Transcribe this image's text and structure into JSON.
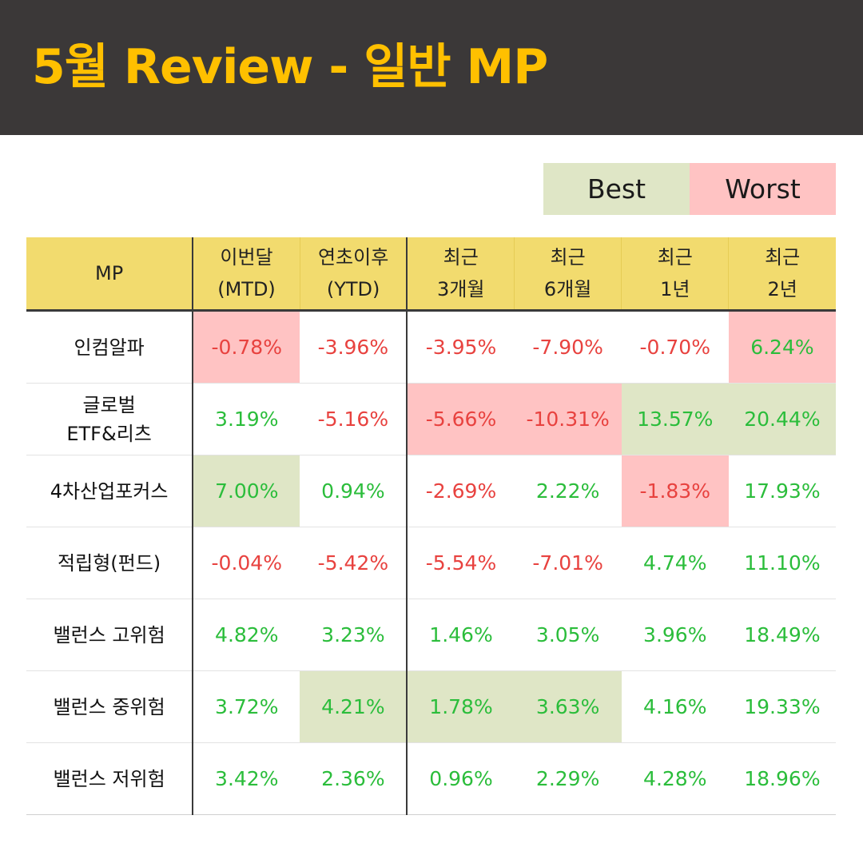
{
  "title": "5월 Review - 일반 MP",
  "legend": {
    "best": "Best",
    "worst": "Worst"
  },
  "table": {
    "headers": [
      {
        "l1": "MP",
        "l2": ""
      },
      {
        "l1": "이번달",
        "l2": "(MTD)"
      },
      {
        "l1": "연초이후",
        "l2": "(YTD)"
      },
      {
        "l1": "최근",
        "l2": "3개월"
      },
      {
        "l1": "최근",
        "l2": "6개월"
      },
      {
        "l1": "최근",
        "l2": "1년"
      },
      {
        "l1": "최근",
        "l2": "2년"
      }
    ],
    "rows": [
      {
        "name1": "인컴알파",
        "name2": "",
        "cells": [
          {
            "v": "-0.78%",
            "s": "neg",
            "h": "worst"
          },
          {
            "v": "-3.96%",
            "s": "neg",
            "h": ""
          },
          {
            "v": "-3.95%",
            "s": "neg",
            "h": ""
          },
          {
            "v": "-7.90%",
            "s": "neg",
            "h": ""
          },
          {
            "v": "-0.70%",
            "s": "neg",
            "h": ""
          },
          {
            "v": "6.24%",
            "s": "pos",
            "h": "worst"
          }
        ]
      },
      {
        "name1": "글로벌",
        "name2": "ETF&리츠",
        "cells": [
          {
            "v": "3.19%",
            "s": "pos",
            "h": ""
          },
          {
            "v": "-5.16%",
            "s": "neg",
            "h": ""
          },
          {
            "v": "-5.66%",
            "s": "neg",
            "h": "worst"
          },
          {
            "v": "-10.31%",
            "s": "neg",
            "h": "worst"
          },
          {
            "v": "13.57%",
            "s": "pos",
            "h": "best"
          },
          {
            "v": "20.44%",
            "s": "pos",
            "h": "best"
          }
        ]
      },
      {
        "name1": "4차산업포커스",
        "name2": "",
        "cells": [
          {
            "v": "7.00%",
            "s": "pos",
            "h": "best"
          },
          {
            "v": "0.94%",
            "s": "pos",
            "h": ""
          },
          {
            "v": "-2.69%",
            "s": "neg",
            "h": ""
          },
          {
            "v": "2.22%",
            "s": "pos",
            "h": ""
          },
          {
            "v": "-1.83%",
            "s": "neg",
            "h": "worst"
          },
          {
            "v": "17.93%",
            "s": "pos",
            "h": ""
          }
        ]
      },
      {
        "name1": "적립형(펀드)",
        "name2": "",
        "cells": [
          {
            "v": "-0.04%",
            "s": "neg",
            "h": ""
          },
          {
            "v": "-5.42%",
            "s": "neg",
            "h": ""
          },
          {
            "v": "-5.54%",
            "s": "neg",
            "h": ""
          },
          {
            "v": "-7.01%",
            "s": "neg",
            "h": ""
          },
          {
            "v": "4.74%",
            "s": "pos",
            "h": ""
          },
          {
            "v": "11.10%",
            "s": "pos",
            "h": ""
          }
        ]
      },
      {
        "name1": "밸런스 고위험",
        "name2": "",
        "cells": [
          {
            "v": "4.82%",
            "s": "pos",
            "h": ""
          },
          {
            "v": "3.23%",
            "s": "pos",
            "h": ""
          },
          {
            "v": "1.46%",
            "s": "pos",
            "h": ""
          },
          {
            "v": "3.05%",
            "s": "pos",
            "h": ""
          },
          {
            "v": "3.96%",
            "s": "pos",
            "h": ""
          },
          {
            "v": "18.49%",
            "s": "pos",
            "h": ""
          }
        ]
      },
      {
        "name1": "밸런스 중위험",
        "name2": "",
        "cells": [
          {
            "v": "3.72%",
            "s": "pos",
            "h": ""
          },
          {
            "v": "4.21%",
            "s": "pos",
            "h": "best"
          },
          {
            "v": "1.78%",
            "s": "pos",
            "h": "best"
          },
          {
            "v": "3.63%",
            "s": "pos",
            "h": "best"
          },
          {
            "v": "4.16%",
            "s": "pos",
            "h": ""
          },
          {
            "v": "19.33%",
            "s": "pos",
            "h": ""
          }
        ]
      },
      {
        "name1": "밸런스 저위험",
        "name2": "",
        "cells": [
          {
            "v": "3.42%",
            "s": "pos",
            "h": ""
          },
          {
            "v": "2.36%",
            "s": "pos",
            "h": ""
          },
          {
            "v": "0.96%",
            "s": "pos",
            "h": ""
          },
          {
            "v": "2.29%",
            "s": "pos",
            "h": ""
          },
          {
            "v": "4.28%",
            "s": "pos",
            "h": ""
          },
          {
            "v": "18.96%",
            "s": "pos",
            "h": ""
          }
        ]
      }
    ]
  },
  "colors": {
    "header_bg": "#3b3838",
    "title": "#ffc000",
    "table_header_bg": "#f2db6e",
    "best": "#dfe6c6",
    "worst": "#ffc3c3",
    "positive": "#2bbd3b",
    "negative": "#e8423f"
  }
}
